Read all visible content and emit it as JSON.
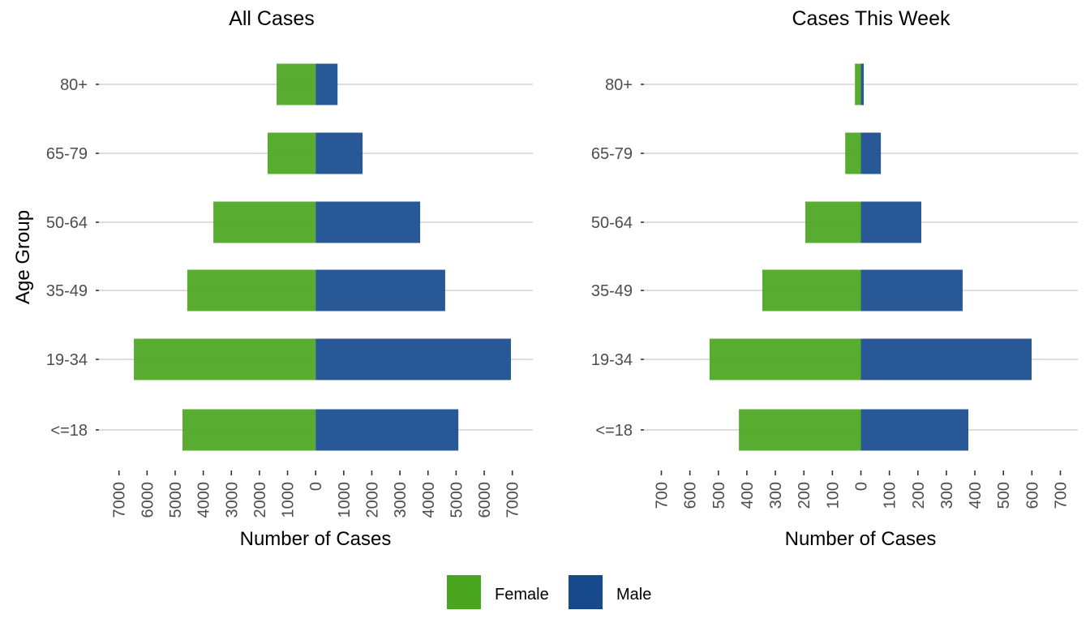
{
  "chart_data": [
    {
      "type": "bar",
      "orientation": "horizontal-diverging",
      "title": "All Cases",
      "xlabel": "Number of Cases",
      "ylabel": "Age Group",
      "categories": [
        "<=18",
        "19-34",
        "35-49",
        "50-64",
        "65-79",
        "80+"
      ],
      "series": [
        {
          "name": "Female",
          "values": [
            4740,
            6470,
            4570,
            3640,
            1710,
            1390
          ]
        },
        {
          "name": "Male",
          "values": [
            5080,
            6950,
            4610,
            3720,
            1670,
            780
          ]
        }
      ],
      "xlim": [
        -7500,
        7500
      ],
      "xticks": [
        -7000,
        -6000,
        -5000,
        -4000,
        -3000,
        -2000,
        -1000,
        0,
        1000,
        2000,
        3000,
        4000,
        5000,
        6000,
        7000
      ],
      "xtick_labels": [
        "7000",
        "6000",
        "5000",
        "4000",
        "3000",
        "2000",
        "1000",
        "0",
        "1000",
        "2000",
        "3000",
        "4000",
        "5000",
        "6000",
        "7000"
      ],
      "grid": "horizontal major",
      "legend": "bottom"
    },
    {
      "type": "bar",
      "orientation": "horizontal-diverging",
      "title": "Cases This Week",
      "xlabel": "Number of Cases",
      "ylabel": "",
      "categories": [
        "<=18",
        "19-34",
        "35-49",
        "50-64",
        "65-79",
        "80+"
      ],
      "series": [
        {
          "name": "Female",
          "values": [
            428,
            531,
            346,
            195,
            55,
            21
          ]
        },
        {
          "name": "Male",
          "values": [
            377,
            599,
            357,
            212,
            70,
            10
          ]
        }
      ],
      "xlim": [
        -750,
        750
      ],
      "xticks": [
        -700,
        -600,
        -500,
        -400,
        -300,
        -200,
        -100,
        0,
        100,
        200,
        300,
        400,
        500,
        600,
        700
      ],
      "xtick_labels": [
        "700",
        "600",
        "500",
        "400",
        "300",
        "200",
        "100",
        "0",
        "100",
        "200",
        "300",
        "400",
        "500",
        "600",
        "700"
      ],
      "grid": "horizontal major",
      "legend": "bottom"
    }
  ],
  "legend": {
    "items": [
      {
        "label": "Female",
        "color": "#4aa61e"
      },
      {
        "label": "Male",
        "color": "#164a8c"
      }
    ]
  },
  "colors": {
    "female_bar": "#4aa61e",
    "male_bar": "#164a8c",
    "bar_opacity": 0.92
  }
}
